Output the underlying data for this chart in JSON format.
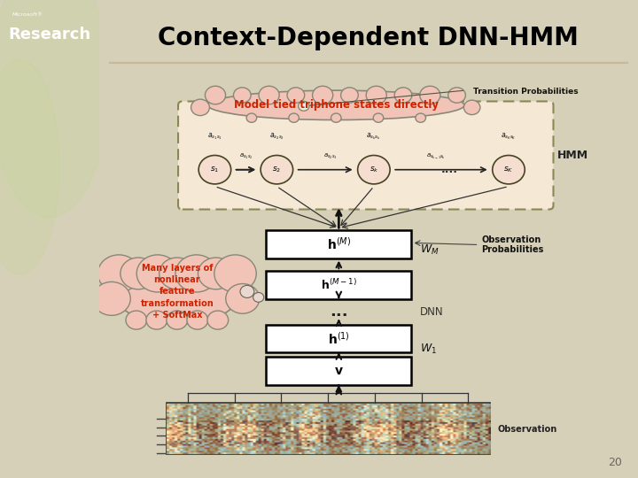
{
  "title": "Context-Dependent DNN-HMM",
  "bg_color": "#d6d0b8",
  "slide_bg": "#ffffff",
  "left_panel_color": "#8b9a6b",
  "title_color": "#000000",
  "title_fontsize": 20,
  "page_number": "20",
  "cloud1_text": "Model tied triphone states directly",
  "cloud1_color": "#f2c4b8",
  "cloud1_edge": "#888877",
  "cloud1_text_color": "#cc2200",
  "cloud2_text": "Many layers of\nnonlinear\nfeature\ntransformation\n+ SoftMax",
  "cloud2_color": "#f2c4b8",
  "cloud2_edge": "#888877",
  "cloud2_text_color": "#cc2200",
  "hmm_box_color": "#f5e8d5",
  "hmm_box_edge": "#888855",
  "label_hmm": "HMM",
  "label_dnn": "DNN",
  "label_trans": "Transition Probabilities",
  "label_obs": "Observation\nProbabilities",
  "label_observation": "Observation",
  "label_wm": "$W_M$",
  "label_w1": "$W_1$",
  "line_color": "#c8b89a"
}
